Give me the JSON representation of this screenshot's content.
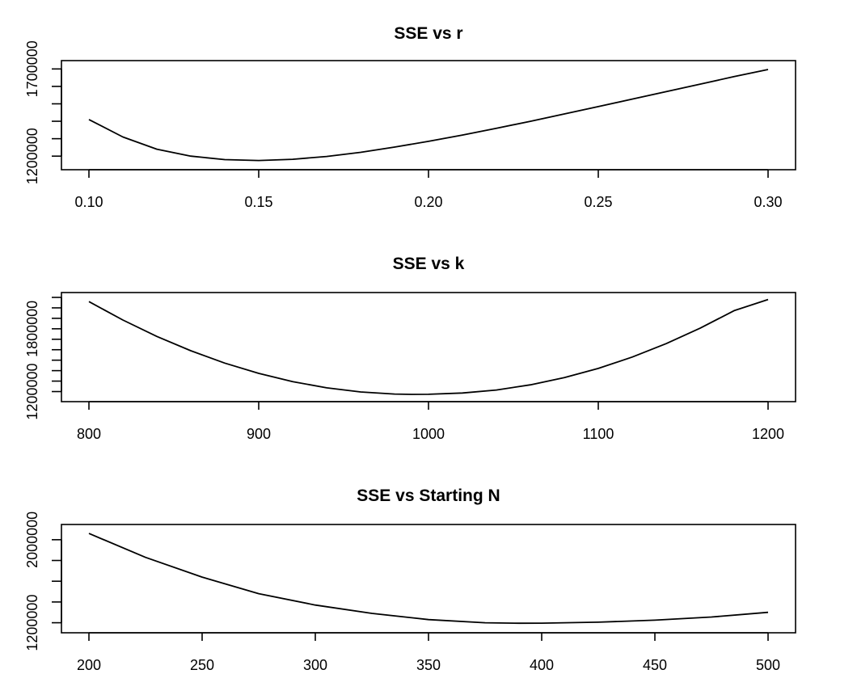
{
  "chart_data": [
    {
      "type": "line",
      "title": "SSE vs r",
      "xlabel": "",
      "ylabel": "",
      "xlim": [
        0.1,
        0.3
      ],
      "ylim": [
        1150000,
        1720000
      ],
      "x_ticks": [
        0.1,
        0.15,
        0.2,
        0.25,
        0.3
      ],
      "x_tick_labels": [
        "0.10",
        "0.15",
        "0.20",
        "0.25",
        "0.30"
      ],
      "y_ticks": [
        1200000,
        1300000,
        1400000,
        1500000,
        1600000,
        1700000
      ],
      "y_tick_labels": [
        "1200000",
        "",
        "",
        "",
        "",
        "1700000"
      ],
      "grid": false,
      "x": [
        0.1,
        0.11,
        0.12,
        0.13,
        0.14,
        0.15,
        0.16,
        0.17,
        0.18,
        0.19,
        0.2,
        0.21,
        0.22,
        0.23,
        0.24,
        0.25,
        0.26,
        0.27,
        0.28,
        0.29,
        0.3
      ],
      "y": [
        1410000,
        1310000,
        1240000,
        1200000,
        1180000,
        1175000,
        1182000,
        1198000,
        1222000,
        1252000,
        1285000,
        1321000,
        1360000,
        1400000,
        1442000,
        1484000,
        1527000,
        1570000,
        1613000,
        1656000,
        1697000
      ]
    },
    {
      "type": "line",
      "title": "SSE vs k",
      "xlabel": "",
      "ylabel": "",
      "xlim": [
        800,
        1200
      ],
      "ylim": [
        1150000,
        2100000
      ],
      "x_ticks": [
        800,
        900,
        1000,
        1100,
        1200
      ],
      "x_tick_labels": [
        "800",
        "900",
        "1000",
        "1100",
        "1200"
      ],
      "y_ticks": [
        1200000,
        1300000,
        1400000,
        1500000,
        1600000,
        1700000,
        1800000,
        1900000,
        2000000,
        2100000
      ],
      "y_tick_labels": [
        "1200000",
        "",
        "",
        "",
        "",
        "",
        "1800000",
        "",
        "",
        ""
      ],
      "grid": false,
      "x": [
        800,
        820,
        840,
        860,
        880,
        900,
        920,
        940,
        960,
        980,
        990,
        1000,
        1020,
        1040,
        1060,
        1080,
        1100,
        1120,
        1140,
        1160,
        1180,
        1200
      ],
      "y": [
        2060000,
        1884000,
        1727000,
        1590000,
        1472000,
        1374000,
        1295000,
        1236000,
        1196000,
        1176000,
        1173000,
        1174000,
        1186000,
        1215000,
        1264000,
        1333000,
        1421000,
        1530000,
        1658000,
        1806000,
        1973000,
        2080000
      ]
    },
    {
      "type": "line",
      "title": "SSE vs Starting N",
      "xlabel": "",
      "ylabel": "",
      "xlim": [
        200,
        500
      ],
      "ylim": [
        1150000,
        2100000
      ],
      "x_ticks": [
        200,
        250,
        300,
        350,
        400,
        450,
        500
      ],
      "x_tick_labels": [
        "200",
        "250",
        "300",
        "350",
        "400",
        "450",
        "500"
      ],
      "y_ticks": [
        1200000,
        1400000,
        1600000,
        1800000,
        2000000
      ],
      "y_tick_labels": [
        "1200000",
        "",
        "",
        "",
        "2000000"
      ],
      "grid": false,
      "x": [
        200,
        225,
        250,
        275,
        300,
        325,
        350,
        375,
        390,
        400,
        425,
        450,
        475,
        500
      ],
      "y": [
        2060000,
        1830000,
        1640000,
        1480000,
        1370000,
        1290000,
        1230000,
        1200000,
        1195000,
        1196000,
        1205000,
        1225000,
        1255000,
        1300000
      ]
    }
  ]
}
